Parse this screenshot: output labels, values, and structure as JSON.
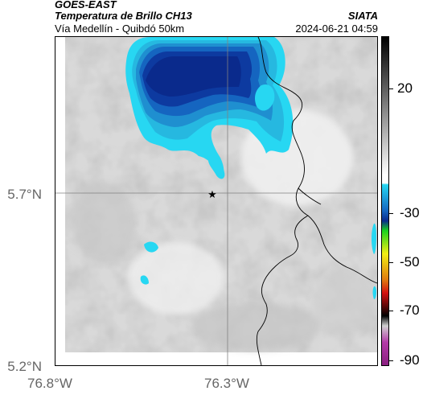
{
  "header": {
    "satellite": "GOES-EAST",
    "product": "Temperatura de Brillo CH13",
    "subtitle": "Vía Medellín - Quibdó 50km",
    "organization": "SIATA",
    "timestamp": "2024-06-21 04:59"
  },
  "axes": {
    "lat_labels": [
      "5.7°N",
      "5.2°N"
    ],
    "lon_labels": [
      "76.8°W",
      "76.3°W"
    ]
  },
  "colorbar": {
    "labels": [
      "20",
      "-30",
      "-50",
      "-70",
      "-90"
    ],
    "colors": {
      "deep_blue": "#0a2a8c",
      "mid_blue": "#1565c0",
      "light_blue": "#26b8e0",
      "cyan": "#27d7f2",
      "green": "#19d21e",
      "yellow": "#f2ef13",
      "red": "#d41010",
      "magenta": "#b43aa8"
    }
  },
  "marker": {
    "symbol": "★"
  }
}
